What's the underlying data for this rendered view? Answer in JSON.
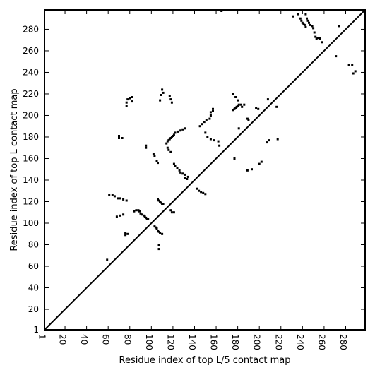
{
  "chart_data": {
    "type": "scatter",
    "xlabel": "Residue index of top L/5 contact map",
    "ylabel": "Residue index of top L contact map",
    "xlim": [
      1,
      298
    ],
    "ylim": [
      1,
      298
    ],
    "xticks": [
      1,
      20,
      40,
      60,
      80,
      100,
      120,
      140,
      160,
      180,
      200,
      220,
      240,
      260,
      280
    ],
    "yticks": [
      1,
      20,
      40,
      60,
      80,
      100,
      120,
      140,
      160,
      180,
      200,
      220,
      240,
      260,
      280
    ],
    "diagonal": true,
    "grid": false,
    "marker_color": "#000000",
    "series": [
      {
        "points": [
          [
            59,
            66
          ],
          [
            61,
            126
          ],
          [
            64,
            126
          ],
          [
            66,
            125
          ],
          [
            69,
            123
          ],
          [
            71,
            123
          ],
          [
            74,
            122
          ],
          [
            77,
            121
          ],
          [
            68,
            106
          ],
          [
            71,
            107
          ],
          [
            74,
            108
          ],
          [
            76,
            91
          ],
          [
            76,
            89
          ],
          [
            78,
            90
          ],
          [
            84,
            111
          ],
          [
            86,
            112
          ],
          [
            88,
            112
          ],
          [
            89,
            111
          ],
          [
            90,
            109
          ],
          [
            91,
            108
          ],
          [
            93,
            107
          ],
          [
            94,
            106
          ],
          [
            95,
            105
          ],
          [
            96,
            104
          ],
          [
            97,
            104
          ],
          [
            103,
            97
          ],
          [
            104,
            96
          ],
          [
            105,
            95
          ],
          [
            106,
            93
          ],
          [
            107,
            92
          ],
          [
            108,
            91
          ],
          [
            110,
            90
          ],
          [
            106,
            122
          ],
          [
            107,
            121
          ],
          [
            108,
            120
          ],
          [
            109,
            119
          ],
          [
            110,
            118
          ],
          [
            111,
            118
          ],
          [
            107,
            80
          ],
          [
            107,
            76
          ],
          [
            118,
            112
          ],
          [
            119,
            110
          ],
          [
            121,
            110
          ],
          [
            70,
            181
          ],
          [
            70,
            179
          ],
          [
            73,
            179
          ],
          [
            77,
            209
          ],
          [
            77,
            212
          ],
          [
            78,
            215
          ],
          [
            80,
            216
          ],
          [
            82,
            217
          ],
          [
            82,
            213
          ],
          [
            95,
            172
          ],
          [
            95,
            170
          ],
          [
            102,
            164
          ],
          [
            103,
            162
          ],
          [
            105,
            158
          ],
          [
            106,
            156
          ],
          [
            108,
            214
          ],
          [
            109,
            219
          ],
          [
            110,
            224
          ],
          [
            111,
            221
          ],
          [
            117,
            218
          ],
          [
            118,
            215
          ],
          [
            119,
            212
          ],
          [
            114,
            174
          ],
          [
            115,
            176
          ],
          [
            116,
            177
          ],
          [
            117,
            178
          ],
          [
            118,
            179
          ],
          [
            119,
            180
          ],
          [
            120,
            181
          ],
          [
            121,
            182
          ],
          [
            122,
            184
          ],
          [
            115,
            170
          ],
          [
            116,
            168
          ],
          [
            118,
            166
          ],
          [
            121,
            155
          ],
          [
            122,
            153
          ],
          [
            124,
            151
          ],
          [
            126,
            149
          ],
          [
            127,
            147
          ],
          [
            129,
            146
          ],
          [
            131,
            145
          ],
          [
            131,
            142
          ],
          [
            133,
            141
          ],
          [
            134,
            143
          ],
          [
            125,
            185
          ],
          [
            127,
            186
          ],
          [
            129,
            187
          ],
          [
            131,
            188
          ],
          [
            142,
            132
          ],
          [
            144,
            130
          ],
          [
            146,
            129
          ],
          [
            148,
            128
          ],
          [
            150,
            127
          ],
          [
            145,
            190
          ],
          [
            147,
            192
          ],
          [
            149,
            194
          ],
          [
            151,
            196
          ],
          [
            154,
            197
          ],
          [
            155,
            200
          ],
          [
            155,
            203
          ],
          [
            157,
            204
          ],
          [
            157,
            206
          ],
          [
            150,
            184
          ],
          [
            152,
            180
          ],
          [
            155,
            178
          ],
          [
            158,
            177
          ],
          [
            162,
            176
          ],
          [
            163,
            172
          ],
          [
            165,
            297
          ],
          [
            176,
            205
          ],
          [
            177,
            206
          ],
          [
            178,
            207
          ],
          [
            179,
            208
          ],
          [
            180,
            209
          ],
          [
            181,
            210
          ],
          [
            183,
            210
          ],
          [
            186,
            210
          ],
          [
            184,
            208
          ],
          [
            176,
            220
          ],
          [
            178,
            217
          ],
          [
            180,
            214
          ],
          [
            177,
            160
          ],
          [
            181,
            188
          ],
          [
            189,
            197
          ],
          [
            190,
            196
          ],
          [
            189,
            149
          ],
          [
            193,
            150
          ],
          [
            197,
            207
          ],
          [
            199,
            206
          ],
          [
            200,
            155
          ],
          [
            202,
            157
          ],
          [
            207,
            175
          ],
          [
            209,
            177
          ],
          [
            208,
            215
          ],
          [
            216,
            208
          ],
          [
            217,
            178
          ],
          [
            231,
            292
          ],
          [
            236,
            294
          ],
          [
            238,
            290
          ],
          [
            239,
            288
          ],
          [
            240,
            286
          ],
          [
            241,
            285
          ],
          [
            242,
            284
          ],
          [
            243,
            282
          ],
          [
            243,
            294
          ],
          [
            244,
            290
          ],
          [
            245,
            288
          ],
          [
            246,
            286
          ],
          [
            247,
            284
          ],
          [
            249,
            283
          ],
          [
            250,
            281
          ],
          [
            251,
            277
          ],
          [
            252,
            273
          ],
          [
            253,
            271
          ],
          [
            254,
            272
          ],
          [
            256,
            271
          ],
          [
            258,
            268
          ],
          [
            256,
            272
          ],
          [
            271,
            255
          ],
          [
            274,
            283
          ],
          [
            283,
            247
          ],
          [
            286,
            247
          ],
          [
            287,
            239
          ],
          [
            289,
            241
          ]
        ]
      }
    ]
  }
}
